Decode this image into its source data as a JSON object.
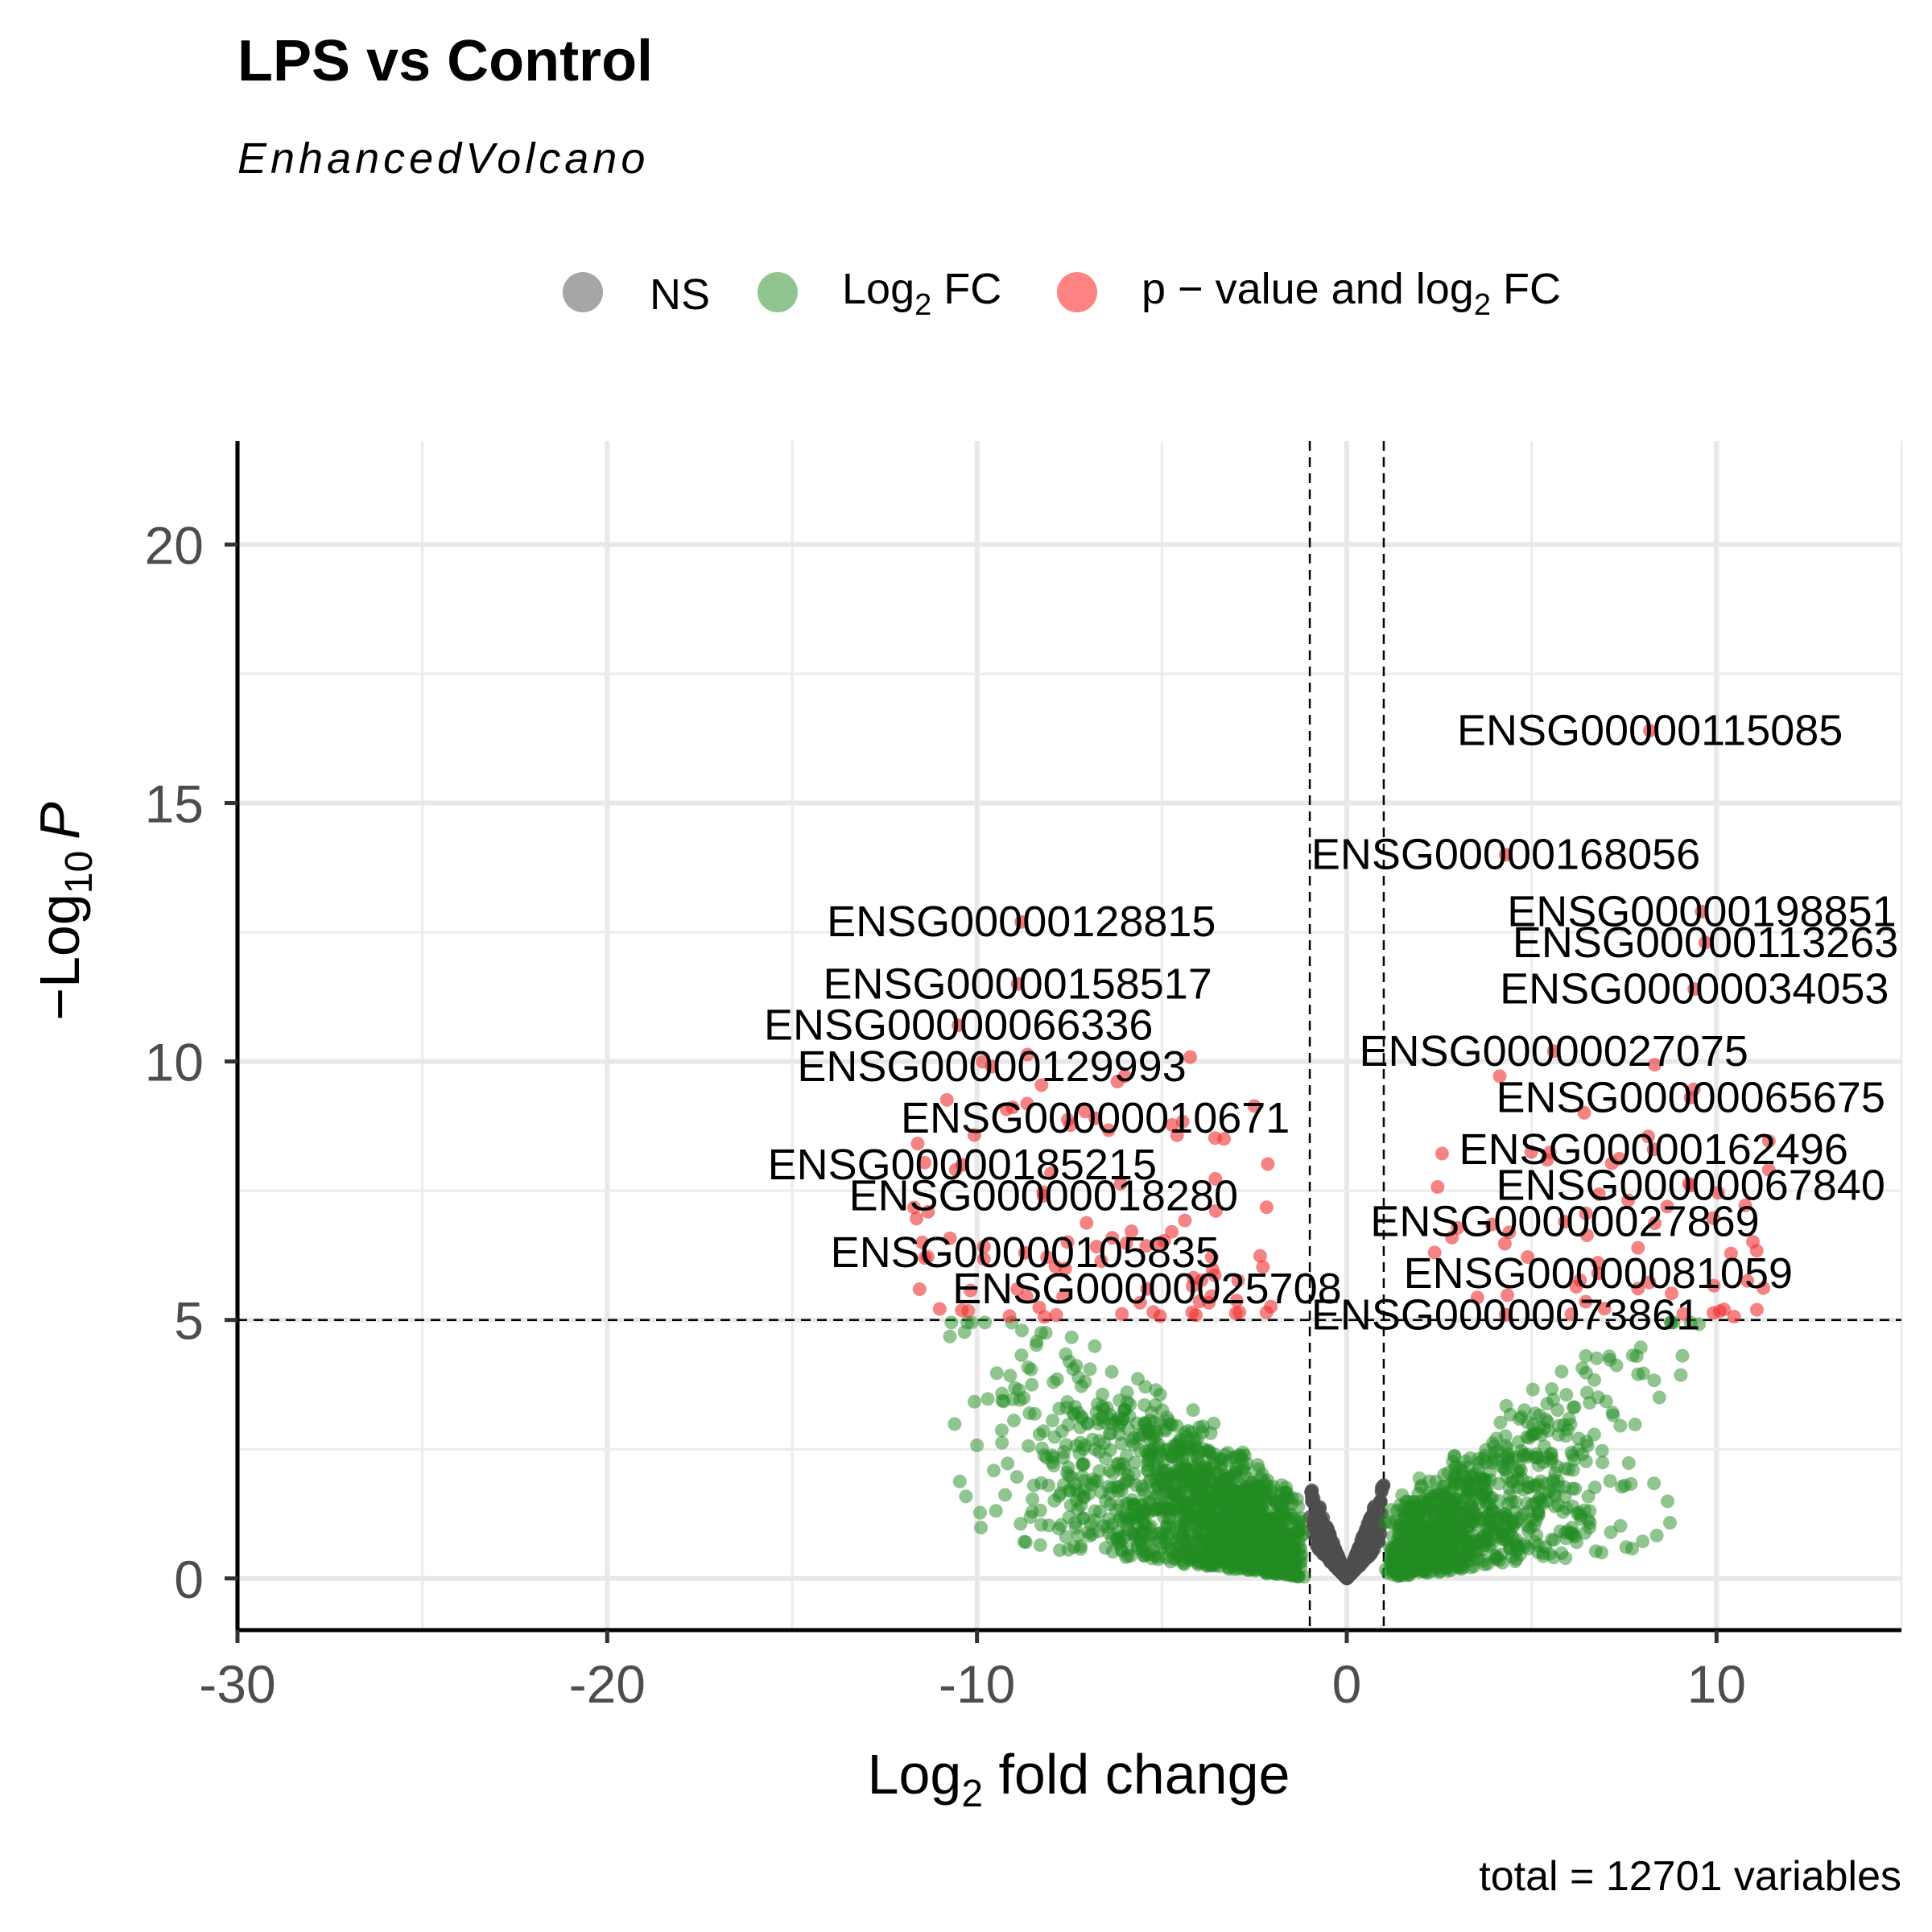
{
  "chart_data": {
    "type": "scatter",
    "title": "LPS vs Control",
    "subtitle": "EnhancedVolcano",
    "xlabel_base": "Log",
    "xlabel_sub": "2",
    "xlabel_rest": " fold change",
    "ylabel_base": "−Log",
    "ylabel_sub": "10",
    "ylabel_italic": "P",
    "caption": "total = 12701 variables",
    "xlim": [
      -30,
      15
    ],
    "ylim": [
      -1,
      22
    ],
    "x_ticks": [
      -30,
      -20,
      -10,
      0,
      10
    ],
    "x_tick_labels": [
      "-30",
      "-20",
      "-10",
      "0",
      "10"
    ],
    "y_ticks": [
      0,
      5,
      10,
      15,
      20
    ],
    "y_tick_labels": [
      "0",
      "5",
      "10",
      "15",
      "20"
    ],
    "thresholds": {
      "fc_cutoff": 1,
      "p_cutoff_neglog10": 5
    },
    "grid": true,
    "legend_position": "top",
    "legend": [
      {
        "key": "NS",
        "label": "NS",
        "color": "#808080"
      },
      {
        "key": "FC",
        "label_base": "Log",
        "label_sub": "2",
        "label_rest": " FC",
        "color": "#228B22"
      },
      {
        "key": "PFC",
        "label_base": "p − value and log",
        "label_sub": "2",
        "label_rest": " FC",
        "color": "#FF4444"
      }
    ],
    "colors": {
      "NS": "#4d4d4d",
      "FC": "#228B22",
      "PFC": "#F03030"
    },
    "labeled_points": [
      {
        "label": "ENSG00000115085",
        "x": 8.2,
        "y": 16.4
      },
      {
        "label": "ENSG00000168056",
        "x": 4.3,
        "y": 14.0
      },
      {
        "label": "ENSG00000128815",
        "x": -8.8,
        "y": 12.7
      },
      {
        "label": "ENSG00000198851",
        "x": 9.6,
        "y": 12.9
      },
      {
        "label": "ENSG00000113263",
        "x": 9.7,
        "y": 12.3
      },
      {
        "label": "ENSG00000158517",
        "x": -8.9,
        "y": 11.5
      },
      {
        "label": "ENSG00000034053",
        "x": 9.4,
        "y": 11.4
      },
      {
        "label": "ENSG00000066336",
        "x": -10.5,
        "y": 10.7
      },
      {
        "label": "ENSG00000027075",
        "x": 5.6,
        "y": 10.2
      },
      {
        "label": "ENSG00000129993",
        "x": -9.6,
        "y": 9.9
      },
      {
        "label": "ENSG00000065675",
        "x": 9.3,
        "y": 9.3
      },
      {
        "label": "ENSG00000010671",
        "x": -6.8,
        "y": 8.9
      },
      {
        "label": "ENSG00000162496",
        "x": 8.3,
        "y": 8.3
      },
      {
        "label": "ENSG00000185215",
        "x": -10.4,
        "y": 8.0
      },
      {
        "label": "ENSG00000067840",
        "x": 9.3,
        "y": 7.6
      },
      {
        "label": "ENSG00000018280",
        "x": -8.2,
        "y": 7.4
      },
      {
        "label": "ENSG00000027869",
        "x": 5.9,
        "y": 6.9
      },
      {
        "label": "ENSG00000105835",
        "x": -8.7,
        "y": 6.3
      },
      {
        "label": "ENSG00000081059",
        "x": 6.8,
        "y": 5.9
      },
      {
        "label": "ENSG00000025708",
        "x": -5.4,
        "y": 5.6
      },
      {
        "label": "ENSG00000073861",
        "x": 4.3,
        "y": 5.1
      }
    ]
  }
}
